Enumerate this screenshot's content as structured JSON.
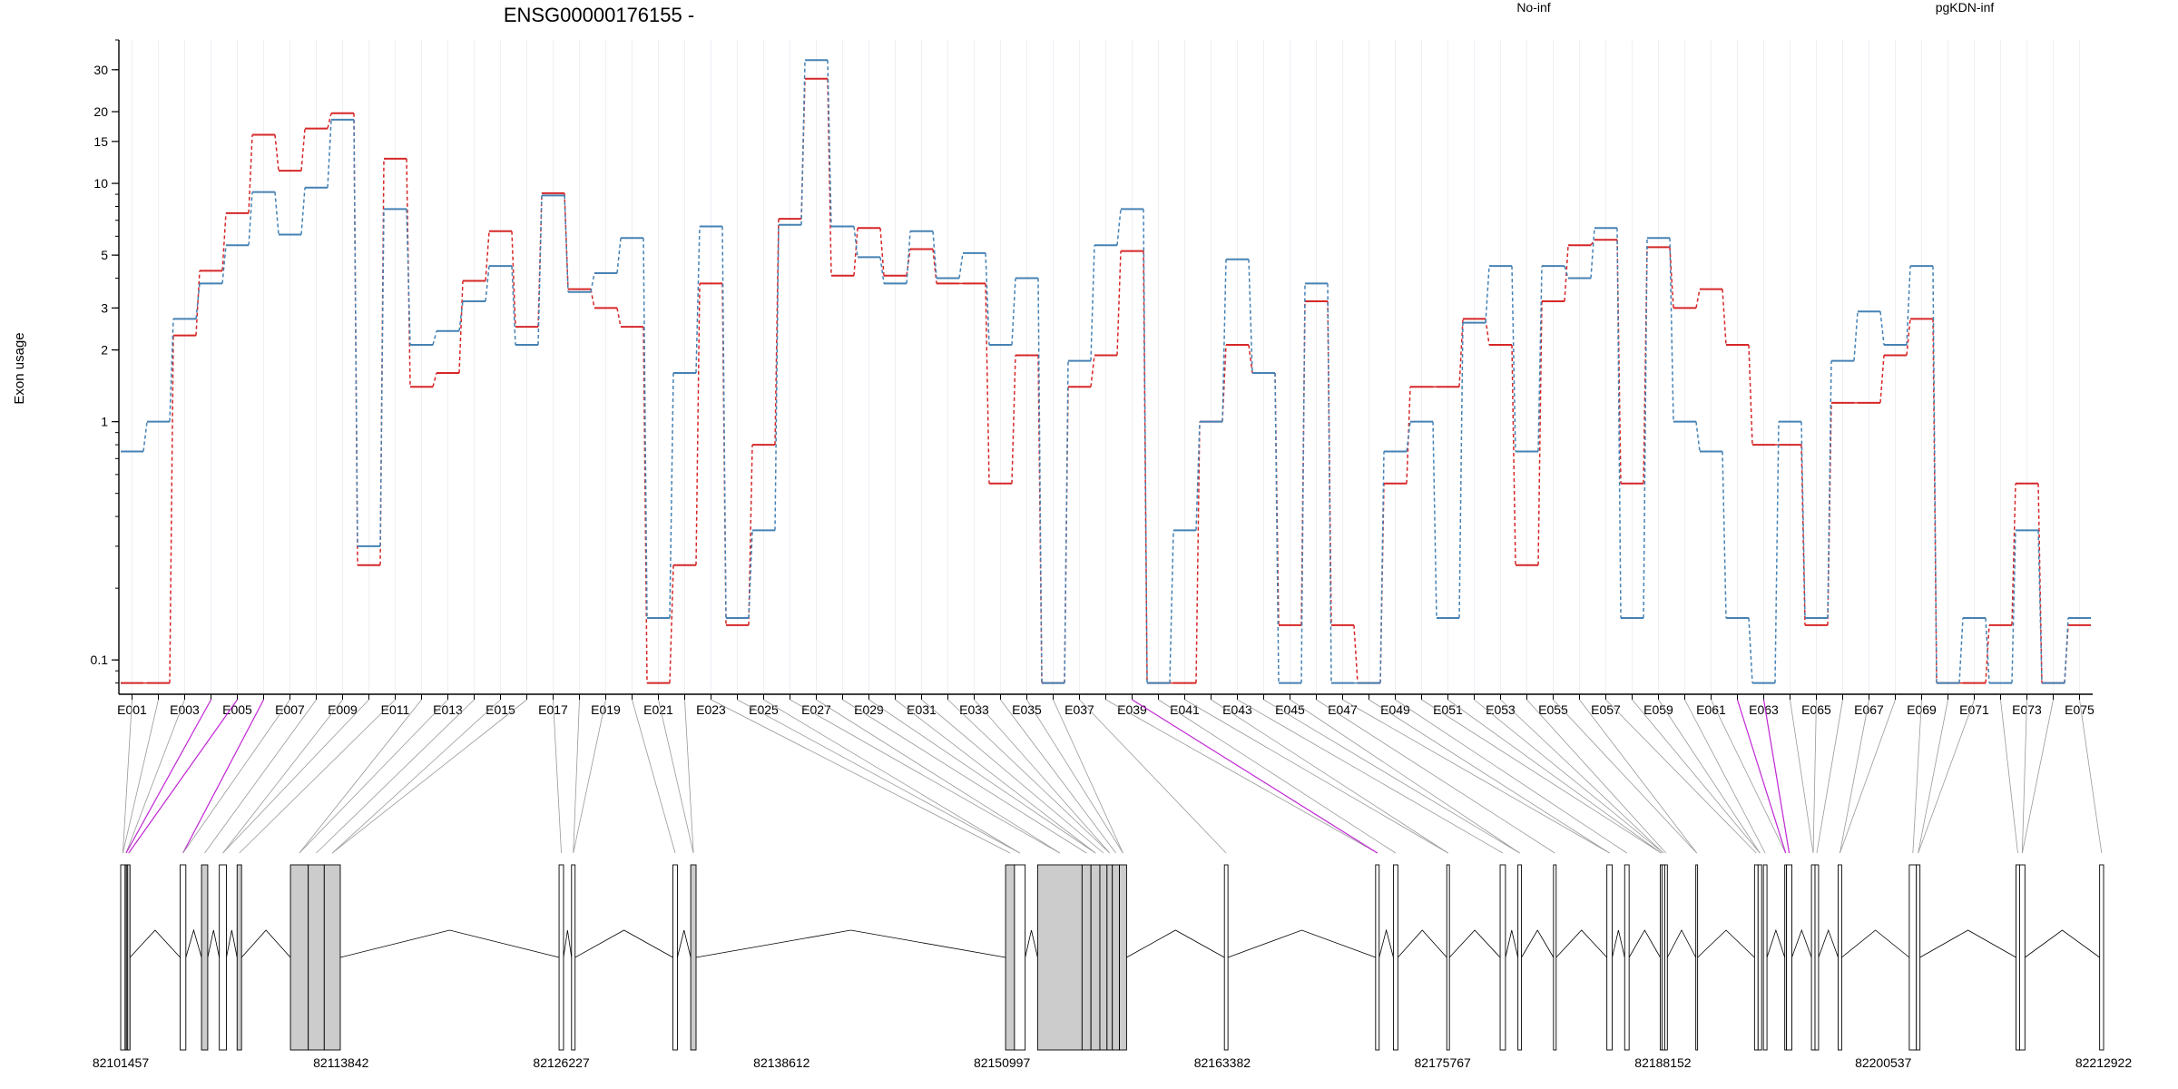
{
  "chart_data": {
    "type": "line",
    "title": "ENSG00000176155 -",
    "ylabel": "Exon usage",
    "yscale": "log",
    "ylim": [
      0.075,
      40
    ],
    "yticks": [
      0.1,
      1,
      2,
      3,
      5,
      10,
      15,
      20,
      30
    ],
    "ytick_labels": [
      "0.1",
      "1",
      "2",
      "3",
      "5",
      "10",
      "15",
      "20",
      "30"
    ],
    "legend_placement": "top-right",
    "categories": [
      "E001",
      "E002",
      "E003",
      "E004",
      "E005",
      "E006",
      "E007",
      "E008",
      "E009",
      "E010",
      "E011",
      "E012",
      "E013",
      "E014",
      "E015",
      "E016",
      "E017",
      "E018",
      "E019",
      "E020",
      "E021",
      "E022",
      "E023",
      "E024",
      "E025",
      "E026",
      "E027",
      "E028",
      "E029",
      "E030",
      "E031",
      "E032",
      "E033",
      "E034",
      "E035",
      "E036",
      "E037",
      "E038",
      "E039",
      "E040",
      "E041",
      "E042",
      "E043",
      "E044",
      "E045",
      "E046",
      "E047",
      "E048",
      "E049",
      "E050",
      "E051",
      "E052",
      "E053",
      "E054",
      "E055",
      "E056",
      "E057",
      "E058",
      "E059",
      "E060",
      "E061",
      "E062",
      "E063",
      "E064",
      "E065",
      "E066",
      "E067",
      "E068",
      "E069",
      "E070",
      "E071",
      "E072",
      "E073",
      "E074",
      "E075"
    ],
    "x_tick_labels": [
      "E001",
      "E003",
      "E005",
      "E007",
      "E009",
      "E011",
      "E013",
      "E015",
      "E017",
      "E019",
      "E021",
      "E023",
      "E025",
      "E027",
      "E029",
      "E031",
      "E033",
      "E035",
      "E037",
      "E039",
      "E041",
      "E043",
      "E045",
      "E047",
      "E049",
      "E051",
      "E053",
      "E055",
      "E057",
      "E059",
      "E061",
      "E063",
      "E065",
      "E067",
      "E069",
      "E071",
      "E073",
      "E075"
    ],
    "series": [
      {
        "name": "No-inf",
        "color": "#d62728",
        "values": [
          0.08,
          0.08,
          2.3,
          4.3,
          7.5,
          16,
          11.3,
          17,
          19.7,
          0.25,
          12.7,
          1.4,
          1.6,
          3.9,
          6.3,
          2.5,
          9.1,
          3.6,
          3,
          2.5,
          0.08,
          0.25,
          3.8,
          0.14,
          0.8,
          7.1,
          27.5,
          4.1,
          6.5,
          4.1,
          5.3,
          3.8,
          3.8,
          0.55,
          1.9,
          0.08,
          1.4,
          1.9,
          5.2,
          0.08,
          0.08,
          1,
          2.1,
          1.6,
          0.14,
          3.2,
          0.14,
          0.08,
          0.55,
          1.4,
          1.4,
          2.7,
          2.1,
          0.25,
          3.2,
          5.5,
          5.8,
          0.55,
          5.4,
          3,
          3.6,
          2.1,
          0.8,
          0.8,
          0.14,
          1.2,
          1.2,
          1.9,
          2.7,
          0.08,
          0.08,
          0.14,
          0.55,
          0.08,
          0.14
        ]
      },
      {
        "name": "pgKDN-inf",
        "color": "#4682b4",
        "values": [
          0.75,
          1,
          2.7,
          3.8,
          5.5,
          9.2,
          6.1,
          9.6,
          18.5,
          0.3,
          7.8,
          2.1,
          2.4,
          3.2,
          4.5,
          2.1,
          8.9,
          3.5,
          4.2,
          5.9,
          0.15,
          1.6,
          6.6,
          0.15,
          0.35,
          6.7,
          32.9,
          6.6,
          4.9,
          3.8,
          6.3,
          4,
          5.1,
          2.1,
          4,
          0.08,
          1.8,
          5.5,
          7.8,
          0.08,
          0.35,
          1,
          4.8,
          1.6,
          0.08,
          3.8,
          0.08,
          0.08,
          0.75,
          1,
          0.15,
          2.6,
          4.5,
          0.75,
          4.5,
          4,
          6.5,
          0.15,
          5.9,
          1,
          0.75,
          0.15,
          0.08,
          1,
          0.15,
          1.8,
          2.9,
          2.1,
          4.5,
          0.08,
          0.15,
          0.08,
          0.35,
          0.08,
          0.15
        ]
      }
    ],
    "genomic_axis_labels": [
      "82101457",
      "82113842",
      "82126227",
      "82138612",
      "82150997",
      "82163382",
      "82175767",
      "82188152",
      "82200537",
      "82212922"
    ],
    "genomic_range": [
      82101457,
      82212922
    ],
    "exon_coords": [
      [
        82101457,
        82101700
      ],
      [
        82101720,
        82101800
      ],
      [
        82101830,
        82101980
      ],
      [
        82104800,
        82105120
      ],
      [
        82106000,
        82106350
      ],
      [
        82107000,
        82107400
      ],
      [
        82108000,
        82108250
      ],
      [
        82111000,
        82112000
      ],
      [
        82112000,
        82112900
      ],
      [
        82112900,
        82113800
      ],
      [
        82126100,
        82126350
      ],
      [
        82126800,
        82127000
      ],
      [
        82132500,
        82132750
      ],
      [
        82133500,
        82133800
      ],
      [
        82151200,
        82151700
      ],
      [
        82151700,
        82152300
      ],
      [
        82153000,
        82155500
      ],
      [
        82155500,
        82156000
      ],
      [
        82156000,
        82156500
      ],
      [
        82156500,
        82156900
      ],
      [
        82156900,
        82157200
      ],
      [
        82157200,
        82157600
      ],
      [
        82157600,
        82158000
      ],
      [
        82163500,
        82163700
      ],
      [
        82172000,
        82172200
      ],
      [
        82173000,
        82173250
      ],
      [
        82176000,
        82176150
      ],
      [
        82179000,
        82179300
      ],
      [
        82180000,
        82180200
      ],
      [
        82182000,
        82182150
      ],
      [
        82185000,
        82185300
      ],
      [
        82186000,
        82186250
      ],
      [
        82188000,
        82188100
      ],
      [
        82188100,
        82188250
      ],
      [
        82188250,
        82188400
      ],
      [
        82190000,
        82190100
      ],
      [
        82193300,
        82193500
      ],
      [
        82193500,
        82193700
      ],
      [
        82193800,
        82194000
      ],
      [
        82195000,
        82195100
      ],
      [
        82195100,
        82195400
      ],
      [
        82196500,
        82196700
      ],
      [
        82196700,
        82196900
      ],
      [
        82198000,
        82198200
      ],
      [
        82202000,
        82202400
      ],
      [
        82202400,
        82202600
      ],
      [
        82208000,
        82208200
      ],
      [
        82208200,
        82208500
      ],
      [
        82212700,
        82212922
      ]
    ],
    "exon_fill": [
      "#ffffff",
      "#ffffff",
      "#cccccc",
      "#ffffff",
      "#cccccc",
      "#ffffff",
      "#cccccc",
      "#cccccc",
      "#cccccc",
      "#cccccc",
      "#ffffff",
      "#ffffff",
      "#ffffff",
      "#cccccc",
      "#cccccc",
      "#ffffff",
      "#cccccc",
      "#cccccc",
      "#cccccc",
      "#cccccc",
      "#cccccc",
      "#cccccc",
      "#cccccc",
      "#ffffff",
      "#ffffff",
      "#ffffff",
      "#ffffff",
      "#ffffff",
      "#ffffff",
      "#ffffff",
      "#ffffff",
      "#ffffff",
      "#ffffff",
      "#ffffff",
      "#ffffff",
      "#ffffff",
      "#ffffff",
      "#ffffff",
      "#ffffff",
      "#ffffff",
      "#ffffff",
      "#ffffff",
      "#ffffff",
      "#ffffff",
      "#ffffff",
      "#ffffff",
      "#ffffff",
      "#ffffff",
      "#ffffff"
    ],
    "highlight_color": "#c026d3",
    "highlight_exons": [
      "E004",
      "E005",
      "E006",
      "E039",
      "E062",
      "E063"
    ],
    "grid": "vertical-light"
  }
}
